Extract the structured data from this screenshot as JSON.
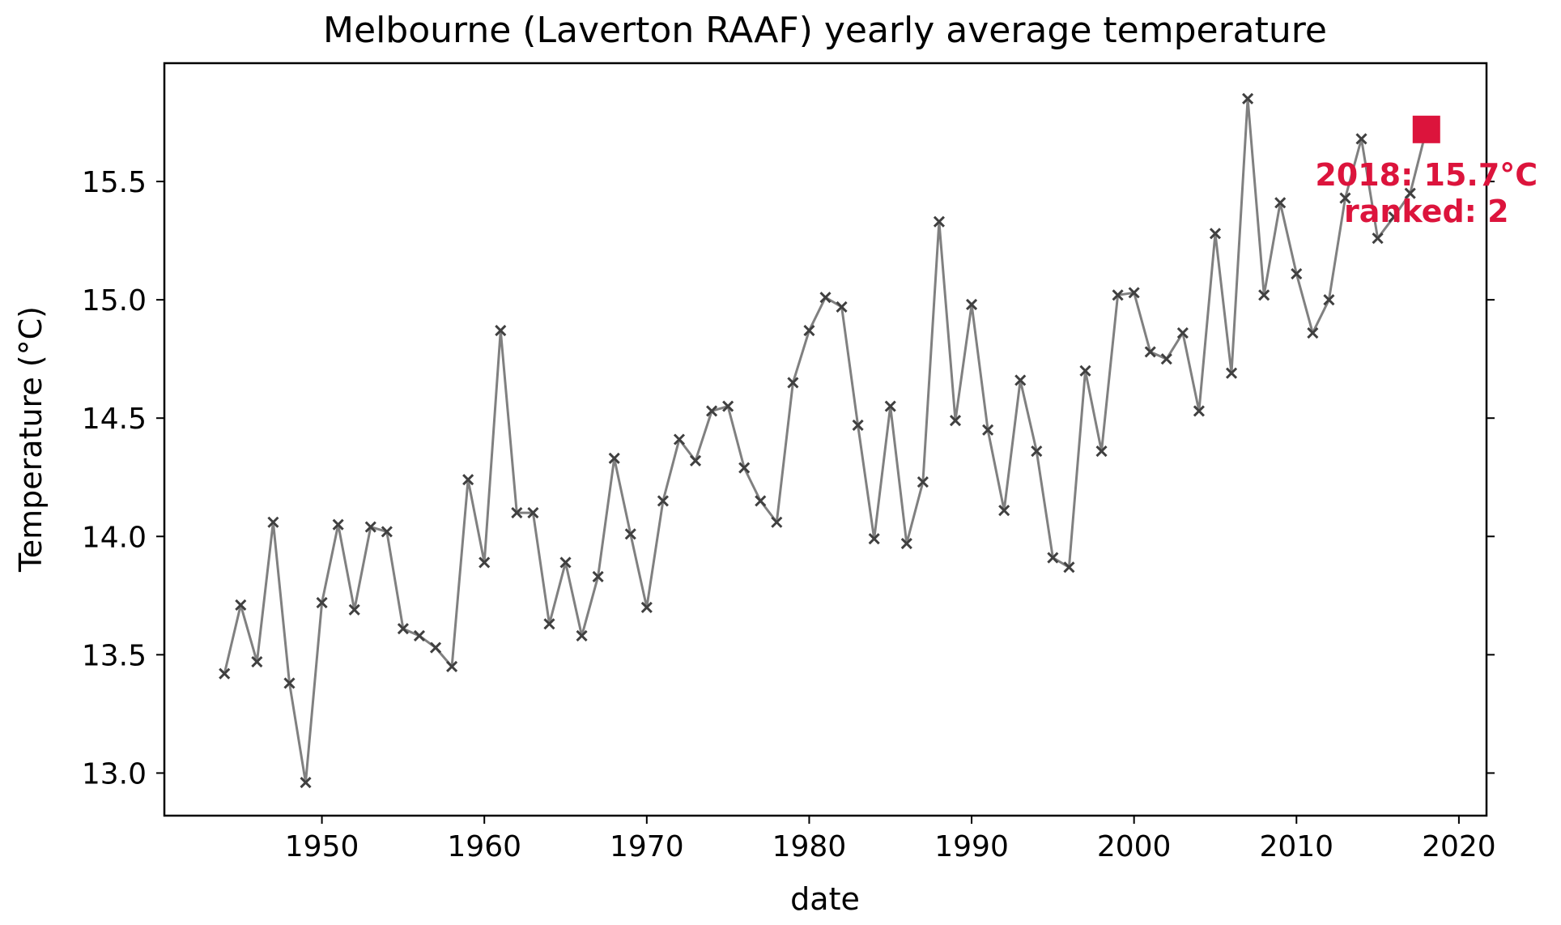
{
  "chart_data": {
    "type": "line",
    "title": "Melbourne (Laverton RAAF) yearly average temperature",
    "xlabel": "date",
    "ylabel": "Temperature (°C)",
    "xlim": [
      1940.3,
      2021.7
    ],
    "ylim": [
      12.82,
      16.0
    ],
    "xticks": [
      1950,
      1960,
      1970,
      1980,
      1990,
      2000,
      2010,
      2020
    ],
    "yticks": [
      13.0,
      13.5,
      14.0,
      14.5,
      15.0,
      15.5
    ],
    "ytick_labels": [
      "13.0",
      "13.5",
      "14.0",
      "14.5",
      "15.0",
      "15.5"
    ],
    "grid": false,
    "line_color": "#808080",
    "marker_color": "#404040",
    "x": [
      1944,
      1945,
      1946,
      1947,
      1948,
      1949,
      1950,
      1951,
      1952,
      1953,
      1954,
      1955,
      1956,
      1957,
      1958,
      1959,
      1960,
      1961,
      1962,
      1963,
      1964,
      1965,
      1966,
      1967,
      1968,
      1969,
      1970,
      1971,
      1972,
      1973,
      1974,
      1975,
      1976,
      1977,
      1978,
      1979,
      1980,
      1981,
      1982,
      1983,
      1984,
      1985,
      1986,
      1987,
      1988,
      1989,
      1990,
      1991,
      1992,
      1993,
      1994,
      1995,
      1996,
      1997,
      1998,
      1999,
      2000,
      2001,
      2002,
      2003,
      2004,
      2005,
      2006,
      2007,
      2008,
      2009,
      2010,
      2011,
      2012,
      2013,
      2014,
      2015,
      2016,
      2017,
      2018
    ],
    "y": [
      13.42,
      13.71,
      13.47,
      14.06,
      13.38,
      12.96,
      13.72,
      14.05,
      13.69,
      14.04,
      14.02,
      13.61,
      13.58,
      13.53,
      13.45,
      14.24,
      13.89,
      14.87,
      14.1,
      14.1,
      13.63,
      13.89,
      13.58,
      13.83,
      14.33,
      14.01,
      13.7,
      14.15,
      14.41,
      14.32,
      14.53,
      14.55,
      14.29,
      14.15,
      14.06,
      14.65,
      14.87,
      15.01,
      14.97,
      14.47,
      13.99,
      14.55,
      13.97,
      14.23,
      15.33,
      14.49,
      14.98,
      14.45,
      14.11,
      14.66,
      14.36,
      13.91,
      13.87,
      14.7,
      14.36,
      15.02,
      15.03,
      14.78,
      14.75,
      14.86,
      14.53,
      15.28,
      14.69,
      15.85,
      15.02,
      15.41,
      15.11,
      14.86,
      15.0,
      15.43,
      15.68,
      15.26,
      15.35,
      15.45,
      15.72
    ],
    "highlight": {
      "x": 2018,
      "y": 15.72,
      "color": "#dc143c",
      "label_line1": "2018: 15.7°C",
      "label_line2": "ranked: 2"
    }
  }
}
